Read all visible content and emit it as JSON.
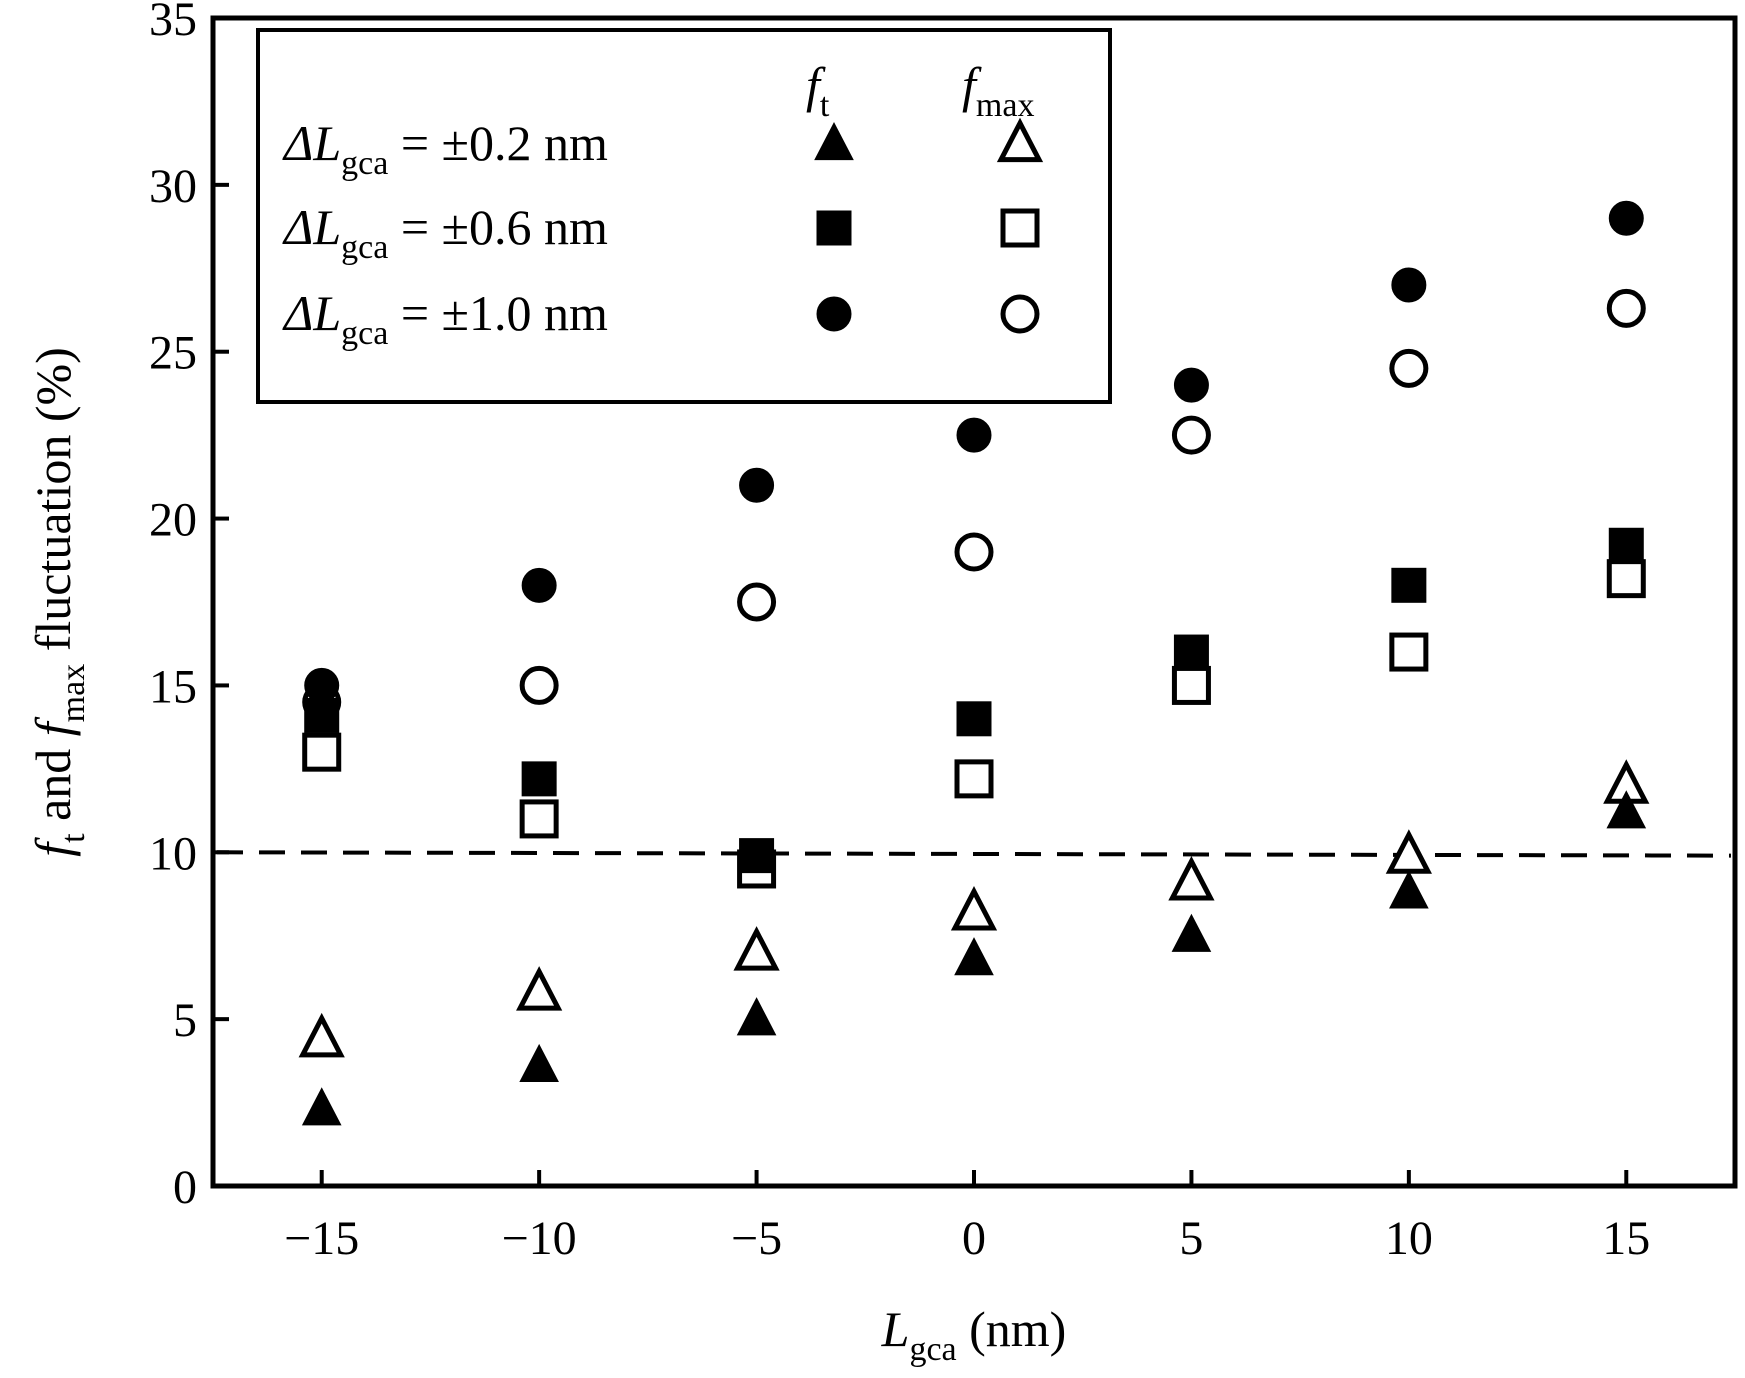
{
  "chart_data": {
    "type": "scatter",
    "x_axis": {
      "label_main": "L",
      "label_sub": "gca",
      "label_unit": " (nm)",
      "range": [
        -17.5,
        17.5
      ],
      "ticks": [
        -15,
        -10,
        -5,
        0,
        5,
        10,
        15
      ],
      "tick_labels": [
        "−15",
        "−10",
        "−5",
        "0",
        "5",
        "10",
        "15"
      ]
    },
    "y_axis": {
      "label_parts": [
        {
          "text": "f",
          "style": "italic"
        },
        {
          "text": "t",
          "style": "sub"
        },
        {
          "text": " and ",
          "style": "normal"
        },
        {
          "text": "f",
          "style": "italic"
        },
        {
          "text": "max",
          "style": "sub"
        },
        {
          "text": " fluctuation (%)",
          "style": "normal"
        }
      ],
      "range": [
        0,
        35
      ],
      "ticks": [
        0,
        5,
        10,
        15,
        20,
        25,
        30,
        35
      ],
      "tick_labels": [
        "0",
        "5",
        "10",
        "15",
        "20",
        "25",
        "30",
        "35"
      ]
    },
    "reference_line": {
      "y_start": 10.0,
      "y_end": 9.9,
      "style": "dashed"
    },
    "legend": {
      "position": "top-left",
      "header_ft": {
        "main": "f",
        "sub": "t"
      },
      "header_fmax": {
        "main": "f",
        "sub": "max"
      },
      "rows": [
        {
          "prefix": "ΔL",
          "sub": "gca",
          "text": " = ±0.2 nm"
        },
        {
          "prefix": "ΔL",
          "sub": "gca",
          "text": " = ±0.6 nm"
        },
        {
          "prefix": "ΔL",
          "sub": "gca",
          "text": " = ±1.0 nm"
        }
      ]
    },
    "x": [
      -15,
      -10,
      -5,
      0,
      5,
      10,
      15
    ],
    "series": [
      {
        "group": "±0.2 nm",
        "metric": "ft",
        "marker": "triangle",
        "filled": true,
        "values": [
          2.3,
          3.6,
          5.0,
          6.8,
          7.5,
          8.8,
          11.2
        ]
      },
      {
        "group": "±0.2 nm",
        "metric": "fmax",
        "marker": "triangle",
        "filled": false,
        "values": [
          4.4,
          5.8,
          7.0,
          8.2,
          9.1,
          9.9,
          12.0
        ]
      },
      {
        "group": "±0.6 nm",
        "metric": "ft",
        "marker": "square",
        "filled": true,
        "values": [
          14.1,
          12.2,
          9.9,
          14.0,
          16.0,
          18.0,
          19.2
        ]
      },
      {
        "group": "±0.6 nm",
        "metric": "fmax",
        "marker": "square",
        "filled": false,
        "values": [
          13.0,
          11.0,
          9.5,
          12.2,
          15.0,
          16.0,
          18.2
        ]
      },
      {
        "group": "±1.0 nm",
        "metric": "ft",
        "marker": "circle",
        "filled": true,
        "values": [
          15.0,
          18.0,
          21.0,
          22.5,
          24.0,
          27.0,
          29.0
        ]
      },
      {
        "group": "±1.0 nm",
        "metric": "fmax",
        "marker": "circle",
        "filled": false,
        "values": [
          14.5,
          15.0,
          17.5,
          19.0,
          22.5,
          24.5,
          26.3
        ]
      }
    ]
  }
}
